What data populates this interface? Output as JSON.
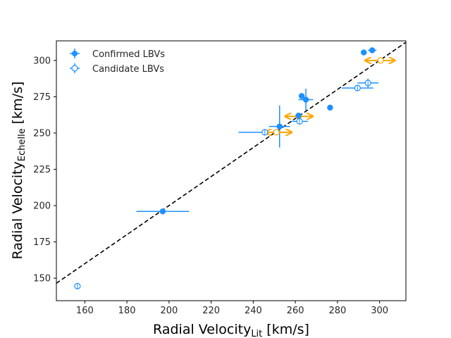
{
  "chart_data": {
    "type": "scatter",
    "title": "",
    "xlabel": "Radial Velocity",
    "xlabel_sub": "Lit",
    "xlabel_unit": " [km/s]",
    "ylabel": "Radial Velocity",
    "ylabel_sub": "Echelle",
    "ylabel_unit": " [km/s]",
    "xlim": [
      146.5,
      312.5
    ],
    "ylim": [
      134.5,
      313.5
    ],
    "xticks": [
      160,
      180,
      200,
      220,
      240,
      260,
      280,
      300
    ],
    "yticks": [
      150,
      175,
      200,
      225,
      250,
      275,
      300
    ],
    "legend_position": "top-left",
    "reference_line": {
      "name": "1:1 line",
      "slope": 1,
      "intercept": 0,
      "style": "dashed",
      "color": "#000000"
    },
    "colors": {
      "primary": "#1e90ff",
      "arrow": "#ffa500"
    },
    "series": [
      {
        "name": "Confirmed LBVs",
        "marker": "filled-circle",
        "points": [
          {
            "x": 197,
            "y": 196,
            "xerr": 12.5,
            "yerr": 0
          },
          {
            "x": 252.5,
            "y": 254.5,
            "xerr": 5,
            "yerr": 14.5
          },
          {
            "x": 261.5,
            "y": 262,
            "xerr": 0,
            "yerr": 0
          },
          {
            "x": 263,
            "y": 275.5,
            "xerr": 0,
            "yerr": 0
          },
          {
            "x": 265,
            "y": 273,
            "xerr": 3.5,
            "yerr": 7.5
          },
          {
            "x": 276.5,
            "y": 267.5,
            "xerr": 0,
            "yerr": 0
          },
          {
            "x": 292.5,
            "y": 305.5,
            "xerr": 0,
            "yerr": 0
          },
          {
            "x": 296.5,
            "y": 307,
            "xerr": 2,
            "yerr": 0
          }
        ]
      },
      {
        "name": "Candidate LBVs",
        "marker": "open-circle",
        "points": [
          {
            "x": 156.5,
            "y": 144.5,
            "xerr": 1,
            "yerr": 0
          },
          {
            "x": 245.5,
            "y": 250.5,
            "xerr": 12.5,
            "yerr": 0
          },
          {
            "x": 262,
            "y": 258,
            "xerr": 4,
            "yerr": 0
          },
          {
            "x": 289.5,
            "y": 281,
            "xerr": 7.5,
            "yerr": 0
          },
          {
            "x": 294.5,
            "y": 284.5,
            "xerr": 5,
            "yerr": 3
          }
        ]
      }
    ],
    "range_arrows": [
      {
        "x": 300.5,
        "y": 300,
        "xmin": 293.5,
        "xmax": 307
      },
      {
        "x": 261.5,
        "y": 261.5,
        "xmin": 255.5,
        "xmax": 268
      },
      {
        "x": 251,
        "y": 250.5,
        "xmin": 246,
        "xmax": 258
      }
    ]
  }
}
